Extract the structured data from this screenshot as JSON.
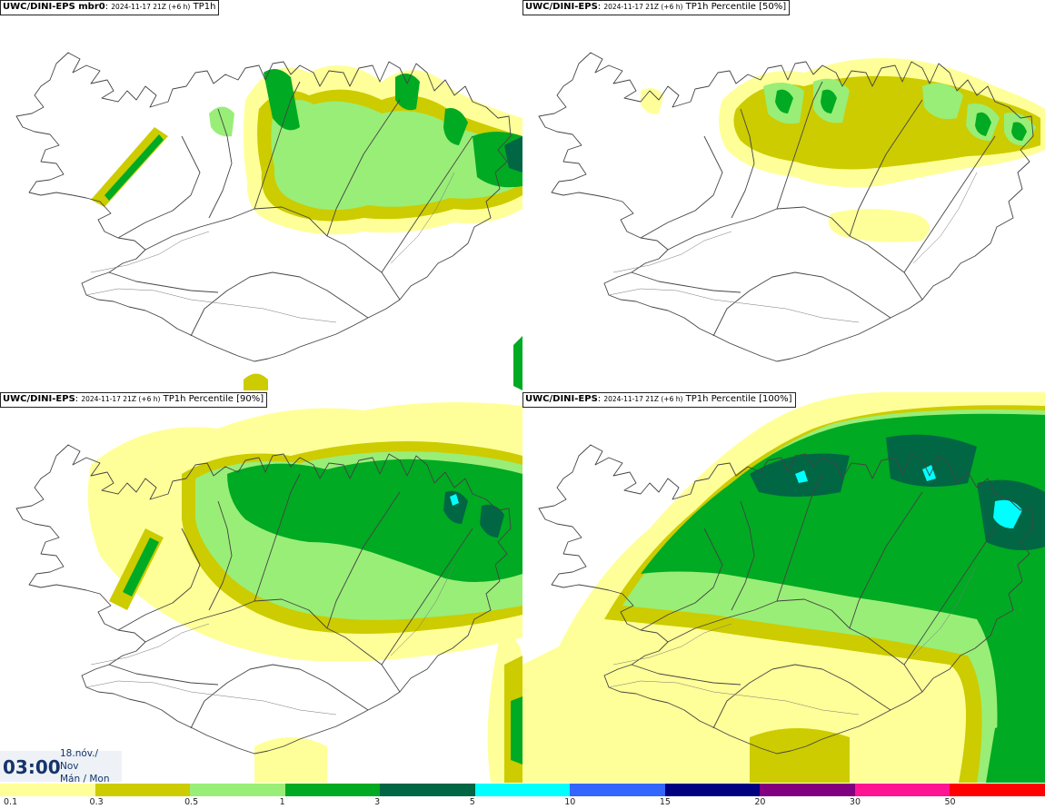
{
  "panels": [
    {
      "model": "UWC/DINI-EPS mbr0",
      "sep": ": ",
      "init": "2024-11-17 21Z (+6 h)",
      "field": "TP1h"
    },
    {
      "model": "UWC/DINI-EPS",
      "sep": ": ",
      "init": "2024-11-17 21Z (+6 h)",
      "field": "TP1h Percentile [50%]"
    },
    {
      "model": "UWC/DINI-EPS",
      "sep": ": ",
      "init": "2024-11-17 21Z (+6 h)",
      "field": "TP1h Percentile [90%]"
    },
    {
      "model": "UWC/DINI-EPS",
      "sep": ": ",
      "init": "2024-11-17 21Z (+6 h)",
      "field": "TP1h Percentile [100%]"
    }
  ],
  "time": {
    "clock": "03:00",
    "day": "18.nóv./",
    "month": "Nov",
    "weekday": "Mán / Mon"
  },
  "legend": {
    "ticks": [
      "0.1",
      "0.3",
      "0.5",
      "1",
      "3",
      "5",
      "10",
      "15",
      "20",
      "30",
      "50"
    ],
    "colors": [
      "#ffff99",
      "#cccc00",
      "#99ee77",
      "#00aa22",
      "#006644",
      "#00ffff",
      "#3366ff",
      "#000080",
      "#800080",
      "#ff1493",
      "#ff0000"
    ]
  },
  "map_colors": {
    "lvl1": "#ffff99",
    "lvl2": "#cccc00",
    "lvl3": "#99ee77",
    "lvl4": "#00aa22",
    "lvl5": "#006644",
    "lvl6": "#00ffff",
    "outline": "#444444"
  }
}
